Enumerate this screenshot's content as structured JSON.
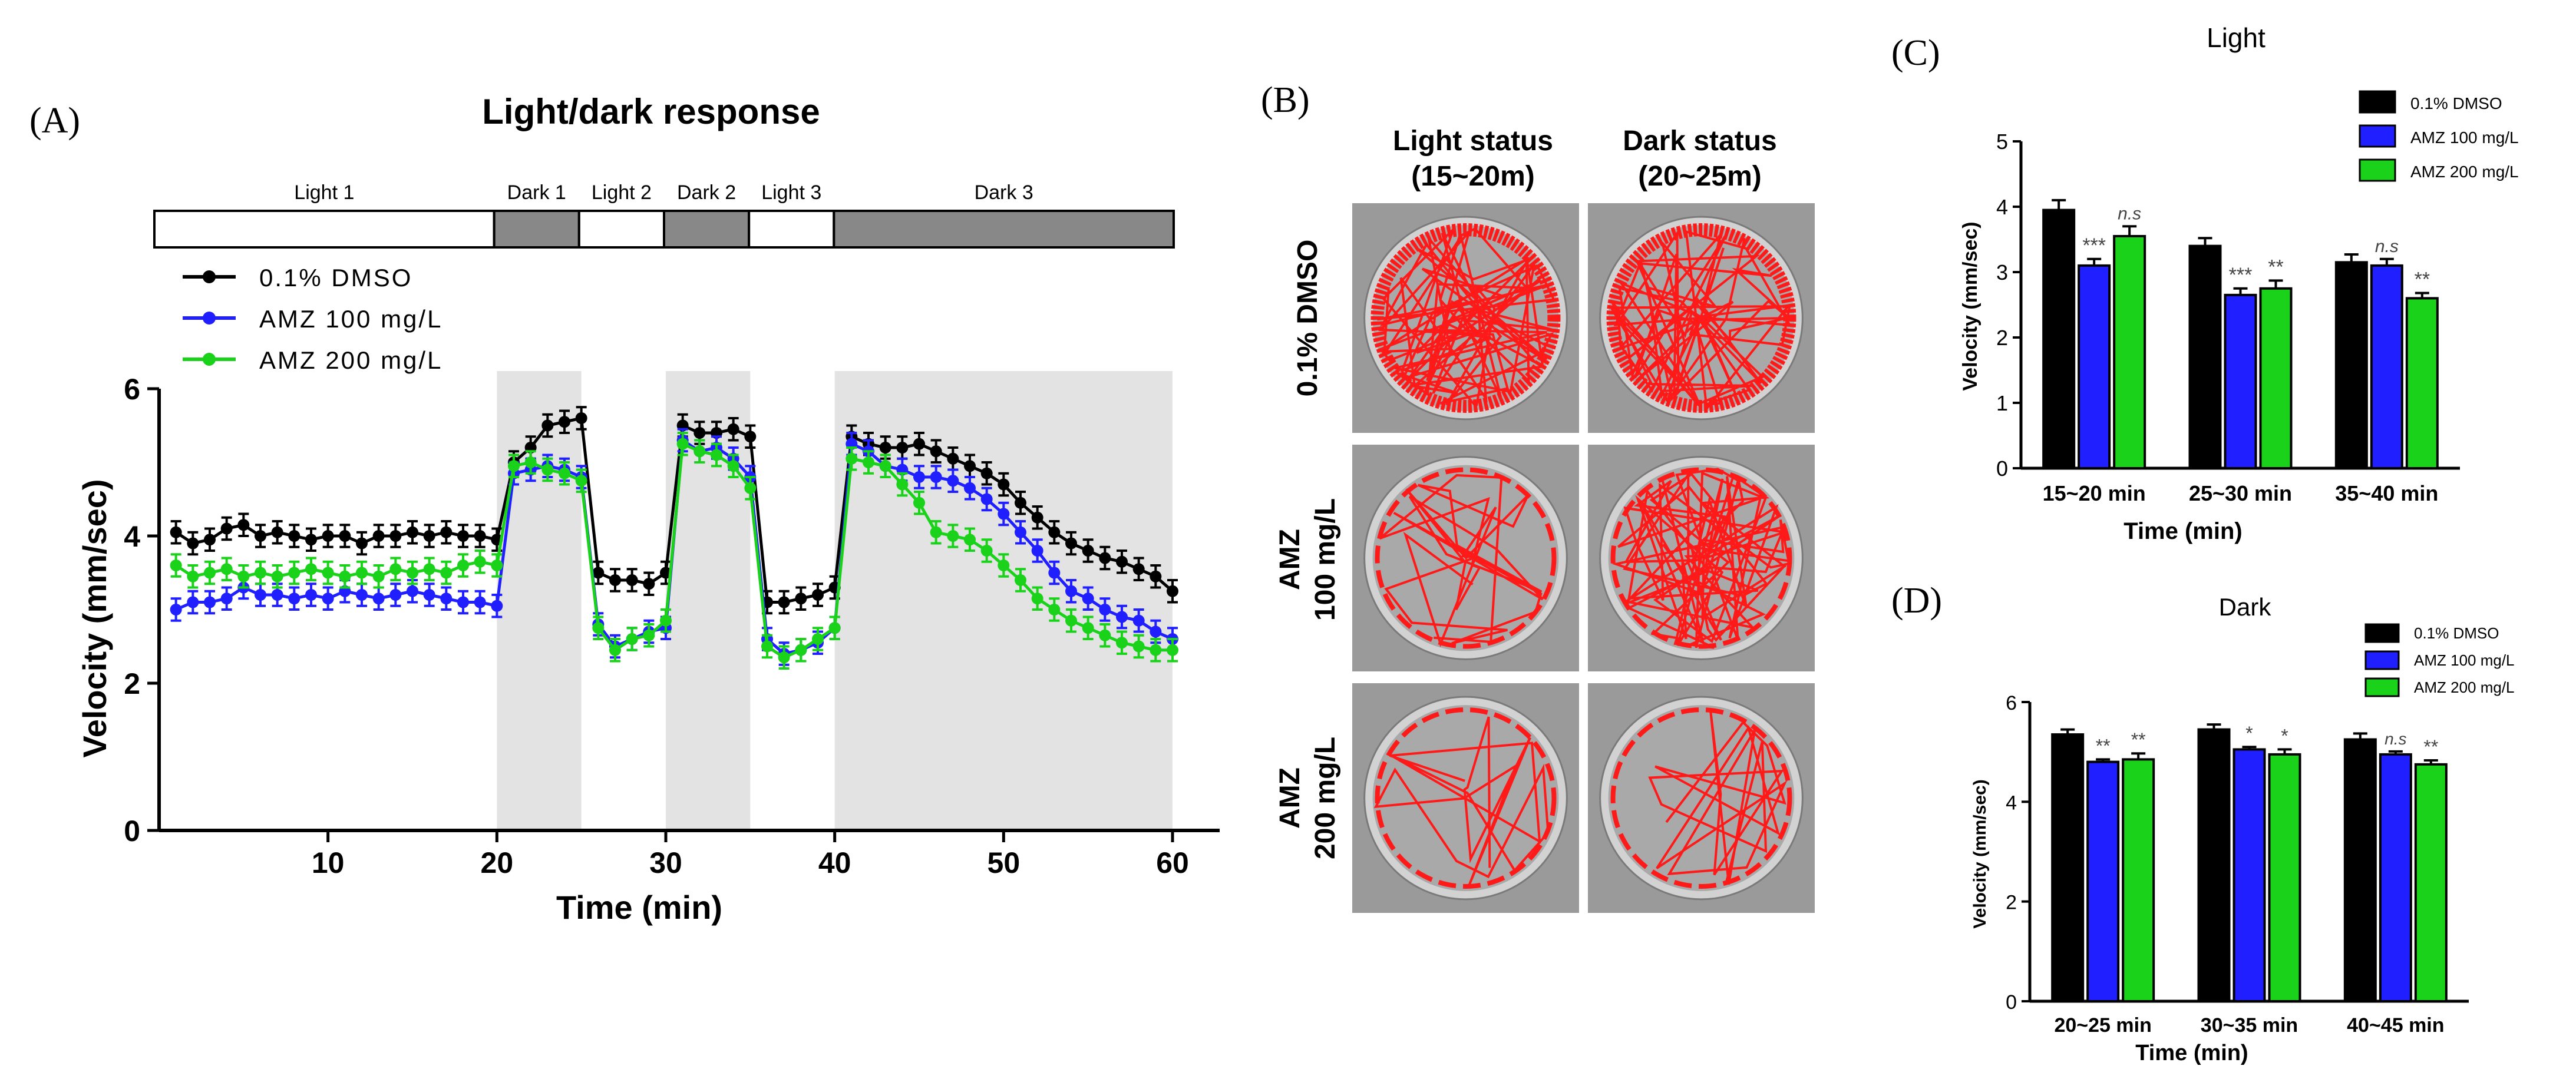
{
  "panels": {
    "A": {
      "letter": "(A)"
    },
    "B": {
      "letter": "(B)"
    },
    "C": {
      "letter": "(C)"
    },
    "D": {
      "letter": "(D)"
    }
  },
  "colors": {
    "dmso": "#000000",
    "amz100": "#1f1fff",
    "amz200": "#19d219",
    "dark_shade": "#e3e3e3",
    "dark_bar": "#888888",
    "track": "#ff1a1a"
  },
  "panel_b": {
    "col_headers": [
      {
        "line1": "Light status",
        "line2": "(15~20m)"
      },
      {
        "line1": "Dark status",
        "line2": "(20~25m)"
      }
    ],
    "row_labels": [
      {
        "line1": "0.1% DMSO",
        "line2": ""
      },
      {
        "line1": "AMZ",
        "line2": "100 mg/L"
      },
      {
        "line1": "AMZ",
        "line2": "200 mg/L"
      }
    ]
  },
  "chart_data": [
    {
      "id": "A",
      "type": "line",
      "title": "Light/dark response",
      "xlabel": "Time (min)",
      "ylabel": "Velocity (mm/sec)",
      "xlim": [
        0,
        60
      ],
      "ylim": [
        0,
        6
      ],
      "xticks": [
        10,
        20,
        30,
        40,
        50,
        60
      ],
      "yticks": [
        0,
        2,
        4,
        6
      ],
      "phases": [
        {
          "label": "Light 1",
          "start": 0,
          "end": 20,
          "type": "light"
        },
        {
          "label": "Dark 1",
          "start": 20,
          "end": 25,
          "type": "dark"
        },
        {
          "label": "Light 2",
          "start": 25,
          "end": 30,
          "type": "light"
        },
        {
          "label": "Dark 2",
          "start": 30,
          "end": 35,
          "type": "dark"
        },
        {
          "label": "Light 3",
          "start": 35,
          "end": 40,
          "type": "light"
        },
        {
          "label": "Dark 3",
          "start": 40,
          "end": 60,
          "type": "dark"
        }
      ],
      "legend_position": "top-left",
      "x": [
        1,
        2,
        3,
        4,
        5,
        6,
        7,
        8,
        9,
        10,
        11,
        12,
        13,
        14,
        15,
        16,
        17,
        18,
        19,
        20,
        21,
        22,
        23,
        24,
        25,
        26,
        27,
        28,
        29,
        30,
        31,
        32,
        33,
        34,
        35,
        36,
        37,
        38,
        39,
        40,
        41,
        42,
        43,
        44,
        45,
        46,
        47,
        48,
        49,
        50,
        51,
        52,
        53,
        54,
        55,
        56,
        57,
        58,
        59,
        60
      ],
      "series": [
        {
          "name": "0.1% DMSO",
          "color": "#000000",
          "values": [
            4.05,
            3.9,
            3.95,
            4.1,
            4.15,
            4.0,
            4.05,
            4.0,
            3.95,
            4.0,
            4.0,
            3.9,
            4.0,
            4.0,
            4.05,
            4.0,
            4.05,
            4.0,
            4.0,
            3.95,
            5.0,
            5.2,
            5.5,
            5.55,
            5.6,
            3.5,
            3.4,
            3.4,
            3.35,
            3.5,
            5.5,
            5.4,
            5.4,
            5.45,
            5.35,
            3.1,
            3.1,
            3.15,
            3.2,
            3.3,
            5.35,
            5.25,
            5.2,
            5.2,
            5.25,
            5.15,
            5.05,
            4.95,
            4.85,
            4.7,
            4.45,
            4.25,
            4.05,
            3.9,
            3.8,
            3.7,
            3.65,
            3.55,
            3.45,
            3.25
          ]
        },
        {
          "name": "AMZ 100 mg/L",
          "color": "#1f1fff",
          "values": [
            3.0,
            3.1,
            3.1,
            3.15,
            3.3,
            3.2,
            3.2,
            3.15,
            3.2,
            3.15,
            3.25,
            3.2,
            3.15,
            3.2,
            3.25,
            3.2,
            3.15,
            3.1,
            3.1,
            3.05,
            4.85,
            4.9,
            4.95,
            4.9,
            4.8,
            2.8,
            2.5,
            2.6,
            2.7,
            2.75,
            5.3,
            5.15,
            5.2,
            5.05,
            4.8,
            2.6,
            2.4,
            2.45,
            2.55,
            2.75,
            5.25,
            5.15,
            4.95,
            4.9,
            4.8,
            4.8,
            4.75,
            4.65,
            4.5,
            4.3,
            4.05,
            3.8,
            3.5,
            3.25,
            3.15,
            3.0,
            2.9,
            2.85,
            2.7,
            2.6
          ]
        },
        {
          "name": "AMZ 200 mg/L",
          "color": "#19d219",
          "values": [
            3.6,
            3.45,
            3.5,
            3.55,
            3.45,
            3.5,
            3.45,
            3.5,
            3.55,
            3.5,
            3.45,
            3.5,
            3.45,
            3.55,
            3.5,
            3.55,
            3.5,
            3.6,
            3.65,
            3.6,
            4.95,
            5.0,
            4.9,
            4.85,
            4.75,
            2.75,
            2.45,
            2.6,
            2.65,
            2.85,
            5.25,
            5.15,
            5.1,
            4.95,
            4.65,
            2.5,
            2.35,
            2.45,
            2.6,
            2.75,
            5.05,
            5.0,
            4.95,
            4.7,
            4.45,
            4.05,
            4.0,
            3.95,
            3.8,
            3.6,
            3.4,
            3.15,
            3.0,
            2.85,
            2.75,
            2.65,
            2.55,
            2.5,
            2.45,
            2.45
          ]
        }
      ]
    },
    {
      "id": "C",
      "type": "bar",
      "title": "Light",
      "xlabel": "Time (min)",
      "ylabel": "Velocity (mm/sec)",
      "ylim": [
        0,
        5
      ],
      "yticks": [
        0,
        1,
        2,
        3,
        4,
        5
      ],
      "categories": [
        "15~20 min",
        "25~30 min",
        "35~40 min"
      ],
      "legend_position": "top-right",
      "series": [
        {
          "name": "0.1% DMSO",
          "color": "#000000",
          "values": [
            3.95,
            3.4,
            3.15
          ],
          "errors": [
            0.15,
            0.12,
            0.12
          ],
          "annotations": [
            "",
            "",
            ""
          ]
        },
        {
          "name": "AMZ 100 mg/L",
          "color": "#1f1fff",
          "values": [
            3.1,
            2.65,
            3.1
          ],
          "errors": [
            0.1,
            0.1,
            0.1
          ],
          "annotations": [
            "***",
            "***",
            "n.s"
          ]
        },
        {
          "name": "AMZ 200 mg/L",
          "color": "#19d219",
          "values": [
            3.55,
            2.75,
            2.6
          ],
          "errors": [
            0.15,
            0.12,
            0.08
          ],
          "annotations": [
            "n.s",
            "**",
            "**"
          ]
        }
      ]
    },
    {
      "id": "D",
      "type": "bar",
      "title": "Dark",
      "xlabel": "Time (min)",
      "ylabel": "Velocity (mm/sec)",
      "ylim": [
        0,
        6
      ],
      "yticks": [
        0,
        2,
        4,
        6
      ],
      "categories": [
        "20~25 min",
        "30~35 min",
        "40~45 min"
      ],
      "legend_position": "top-right",
      "series": [
        {
          "name": "0.1% DMSO",
          "color": "#000000",
          "values": [
            5.35,
            5.45,
            5.25
          ],
          "errors": [
            0.1,
            0.1,
            0.12
          ],
          "annotations": [
            "",
            "",
            ""
          ]
        },
        {
          "name": "AMZ 100 mg/L",
          "color": "#1f1fff",
          "values": [
            4.8,
            5.05,
            4.95
          ],
          "errors": [
            0.05,
            0.05,
            0.06
          ],
          "annotations": [
            "**",
            "*",
            "n.s"
          ]
        },
        {
          "name": "AMZ 200 mg/L",
          "color": "#19d219",
          "values": [
            4.85,
            4.95,
            4.75
          ],
          "errors": [
            0.12,
            0.1,
            0.08
          ],
          "annotations": [
            "**",
            "*",
            "**"
          ]
        }
      ]
    }
  ]
}
